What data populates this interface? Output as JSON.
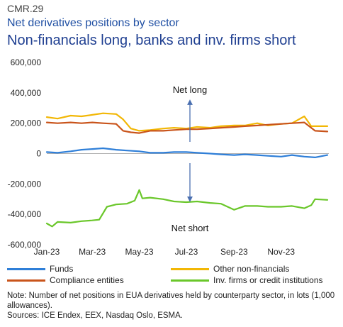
{
  "header": {
    "code": "CMR.29",
    "subtitle": "Net derivatives positions by sector",
    "title": "Non-financials long, banks and inv. firms short"
  },
  "annotations": {
    "net_long": "Net long",
    "net_short": "Net short",
    "arrow_color": "#4a6fb0"
  },
  "footnote": {
    "note": "Note: Number of net positions in EUA derivatives held by counterparty sector, in lots (1,000 allowances).",
    "sources": "Sources: ICE Endex, EEX, Nasdaq Oslo, ESMA."
  },
  "chart_data": {
    "type": "line",
    "title": "",
    "xlabel": "",
    "ylabel": "",
    "ylim": [
      -600000,
      600000
    ],
    "yticks": [
      600000,
      400000,
      200000,
      0,
      -200000,
      -400000,
      -600000
    ],
    "ytick_labels": [
      "600,000",
      "400,000",
      "200,000",
      "0",
      "-200,000",
      "-400,000",
      "-600,000"
    ],
    "xlim": [
      "2023-01-01",
      "2023-12-31"
    ],
    "xticks": [
      "2023-01-01",
      "2023-03-01",
      "2023-05-01",
      "2023-07-01",
      "2023-09-01",
      "2023-11-01"
    ],
    "xtick_labels": [
      "Jan-23",
      "Mar-23",
      "May-23",
      "Jul-23",
      "Sep-23",
      "Nov-23"
    ],
    "grid": false,
    "zero_line": true,
    "legend_position": "bottom",
    "series": [
      {
        "name": "Funds",
        "color": "#2f7fd8",
        "points": [
          [
            "2023-01-01",
            10000
          ],
          [
            "2023-01-15",
            5000
          ],
          [
            "2023-02-01",
            15000
          ],
          [
            "2023-02-15",
            25000
          ],
          [
            "2023-03-01",
            30000
          ],
          [
            "2023-03-15",
            35000
          ],
          [
            "2023-04-01",
            25000
          ],
          [
            "2023-04-15",
            20000
          ],
          [
            "2023-05-01",
            15000
          ],
          [
            "2023-05-15",
            5000
          ],
          [
            "2023-06-01",
            5000
          ],
          [
            "2023-06-15",
            10000
          ],
          [
            "2023-07-01",
            10000
          ],
          [
            "2023-07-15",
            5000
          ],
          [
            "2023-08-01",
            0
          ],
          [
            "2023-08-15",
            -5000
          ],
          [
            "2023-09-01",
            -10000
          ],
          [
            "2023-09-15",
            -5000
          ],
          [
            "2023-10-01",
            -10000
          ],
          [
            "2023-10-15",
            -15000
          ],
          [
            "2023-11-01",
            -20000
          ],
          [
            "2023-11-15",
            -10000
          ],
          [
            "2023-12-01",
            -20000
          ],
          [
            "2023-12-15",
            -25000
          ],
          [
            "2023-12-31",
            -10000
          ]
        ]
      },
      {
        "name": "Other non-financials",
        "color": "#f2b705",
        "points": [
          [
            "2023-01-01",
            240000
          ],
          [
            "2023-01-15",
            230000
          ],
          [
            "2023-02-01",
            250000
          ],
          [
            "2023-02-15",
            245000
          ],
          [
            "2023-03-01",
            255000
          ],
          [
            "2023-03-15",
            265000
          ],
          [
            "2023-04-01",
            260000
          ],
          [
            "2023-04-10",
            225000
          ],
          [
            "2023-04-20",
            165000
          ],
          [
            "2023-05-01",
            150000
          ],
          [
            "2023-05-15",
            155000
          ],
          [
            "2023-06-01",
            165000
          ],
          [
            "2023-06-15",
            170000
          ],
          [
            "2023-07-01",
            165000
          ],
          [
            "2023-07-15",
            175000
          ],
          [
            "2023-08-01",
            170000
          ],
          [
            "2023-08-15",
            180000
          ],
          [
            "2023-09-01",
            185000
          ],
          [
            "2023-09-15",
            185000
          ],
          [
            "2023-10-01",
            200000
          ],
          [
            "2023-10-15",
            185000
          ],
          [
            "2023-11-01",
            195000
          ],
          [
            "2023-11-15",
            200000
          ],
          [
            "2023-12-01",
            245000
          ],
          [
            "2023-12-10",
            180000
          ],
          [
            "2023-12-31",
            180000
          ]
        ]
      },
      {
        "name": "Compliance entities",
        "color": "#c9541b",
        "points": [
          [
            "2023-01-01",
            205000
          ],
          [
            "2023-01-15",
            200000
          ],
          [
            "2023-02-01",
            205000
          ],
          [
            "2023-02-15",
            200000
          ],
          [
            "2023-03-01",
            205000
          ],
          [
            "2023-03-15",
            200000
          ],
          [
            "2023-04-01",
            195000
          ],
          [
            "2023-04-10",
            150000
          ],
          [
            "2023-04-20",
            140000
          ],
          [
            "2023-05-01",
            135000
          ],
          [
            "2023-05-15",
            150000
          ],
          [
            "2023-06-01",
            150000
          ],
          [
            "2023-06-15",
            155000
          ],
          [
            "2023-07-01",
            160000
          ],
          [
            "2023-07-15",
            160000
          ],
          [
            "2023-08-01",
            165000
          ],
          [
            "2023-08-15",
            170000
          ],
          [
            "2023-09-01",
            175000
          ],
          [
            "2023-09-15",
            180000
          ],
          [
            "2023-10-01",
            185000
          ],
          [
            "2023-10-15",
            190000
          ],
          [
            "2023-11-01",
            195000
          ],
          [
            "2023-11-15",
            200000
          ],
          [
            "2023-12-01",
            205000
          ],
          [
            "2023-12-15",
            150000
          ],
          [
            "2023-12-31",
            145000
          ]
        ]
      },
      {
        "name": "Inv. firms or credit institutions",
        "color": "#6ac72a",
        "points": [
          [
            "2023-01-01",
            -460000
          ],
          [
            "2023-01-08",
            -480000
          ],
          [
            "2023-01-15",
            -450000
          ],
          [
            "2023-02-01",
            -455000
          ],
          [
            "2023-02-15",
            -445000
          ],
          [
            "2023-03-01",
            -440000
          ],
          [
            "2023-03-10",
            -435000
          ],
          [
            "2023-03-20",
            -350000
          ],
          [
            "2023-04-01",
            -335000
          ],
          [
            "2023-04-15",
            -330000
          ],
          [
            "2023-04-25",
            -310000
          ],
          [
            "2023-05-01",
            -240000
          ],
          [
            "2023-05-05",
            -295000
          ],
          [
            "2023-05-15",
            -290000
          ],
          [
            "2023-06-01",
            -300000
          ],
          [
            "2023-06-15",
            -315000
          ],
          [
            "2023-07-01",
            -320000
          ],
          [
            "2023-07-15",
            -315000
          ],
          [
            "2023-08-01",
            -325000
          ],
          [
            "2023-08-15",
            -330000
          ],
          [
            "2023-09-01",
            -370000
          ],
          [
            "2023-09-15",
            -345000
          ],
          [
            "2023-10-01",
            -345000
          ],
          [
            "2023-10-15",
            -350000
          ],
          [
            "2023-11-01",
            -350000
          ],
          [
            "2023-11-15",
            -345000
          ],
          [
            "2023-12-01",
            -360000
          ],
          [
            "2023-12-10",
            -340000
          ],
          [
            "2023-12-15",
            -300000
          ],
          [
            "2023-12-31",
            -305000
          ]
        ]
      }
    ]
  }
}
